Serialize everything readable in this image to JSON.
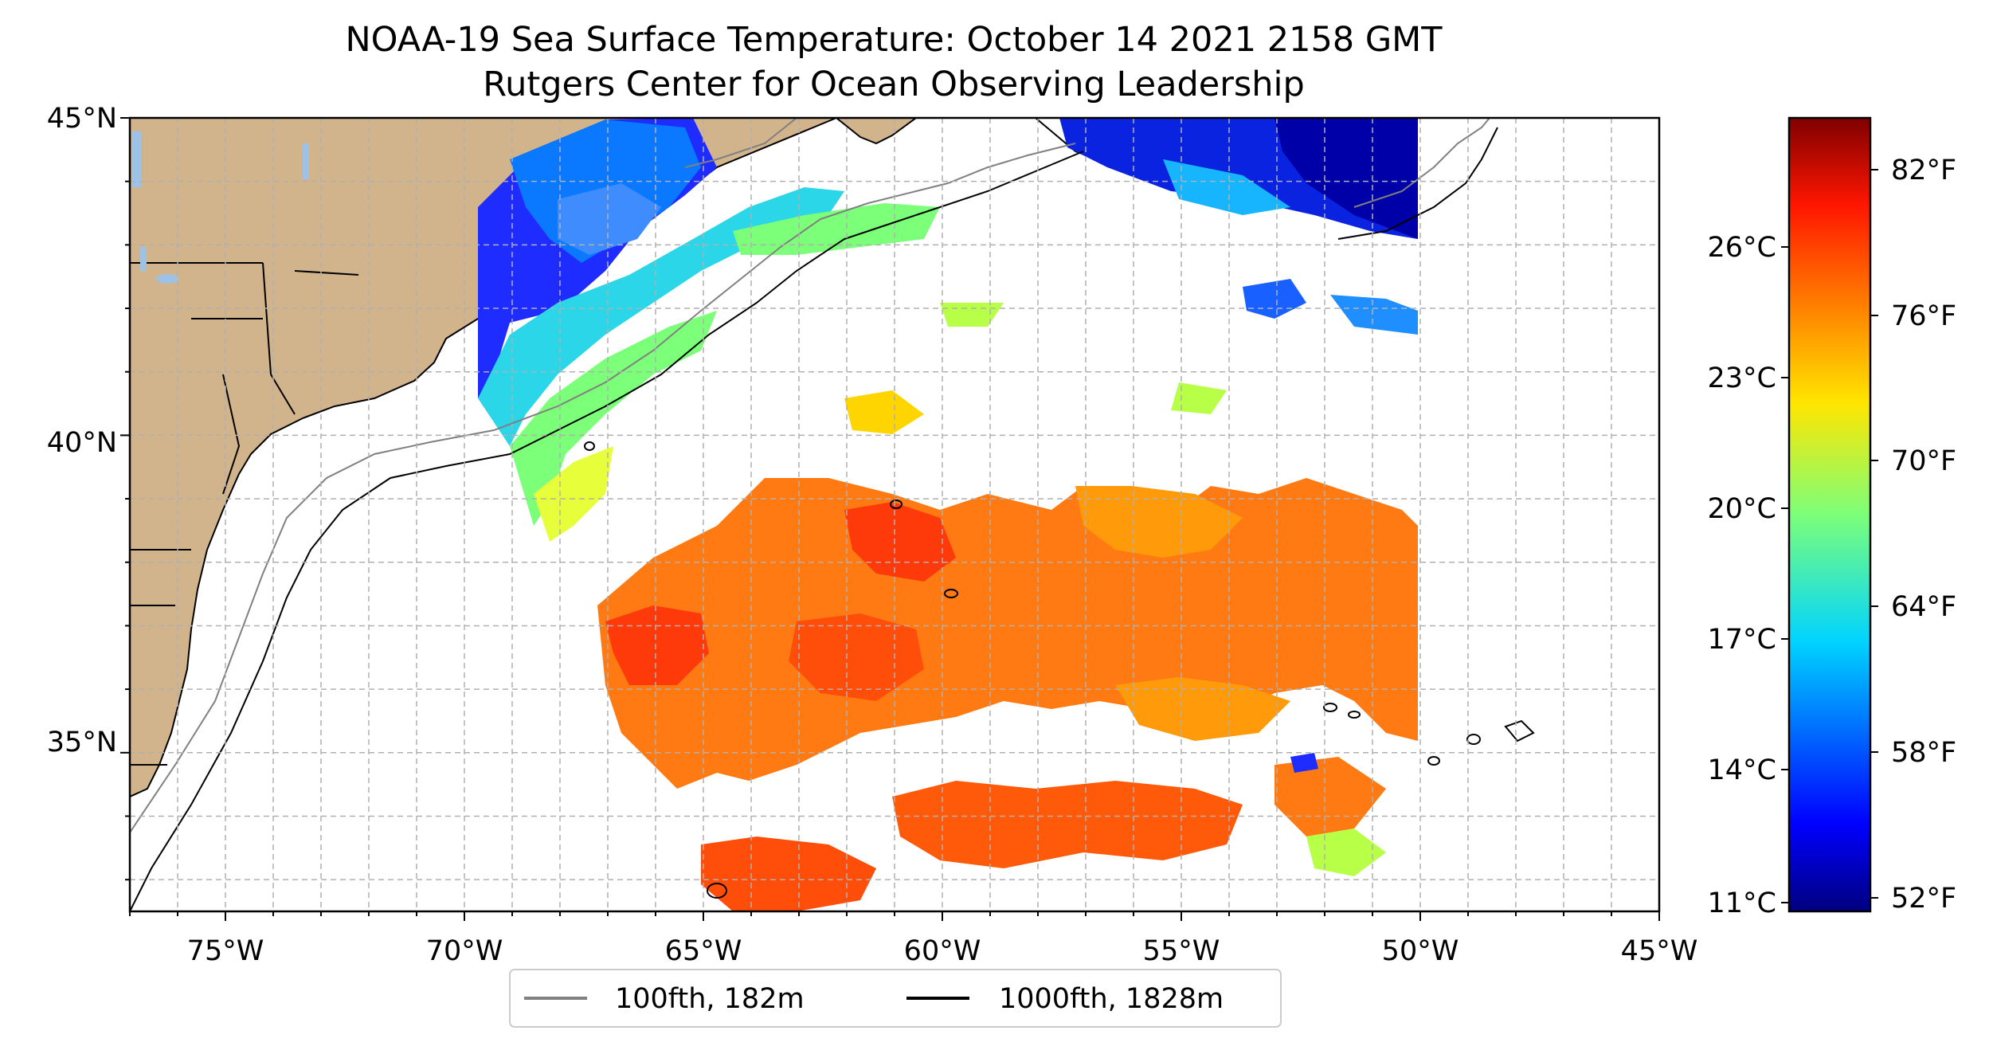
{
  "title": {
    "line1": "NOAA-19 Sea Surface Temperature: October 14 2021 2158 GMT",
    "line2": "Rutgers Center for Ocean Observing Leadership"
  },
  "map": {
    "extent": {
      "lon_min": -77,
      "lon_max": -45,
      "lat_min": 32.5,
      "lat_max": 45
    },
    "land_color": "#d2b48c",
    "lake_color": "#9ec2e6",
    "grid": "dashed gray, 1 degree",
    "x_ticks": [
      "75°W",
      "70°W",
      "65°W",
      "60°W",
      "55°W",
      "50°W",
      "45°W"
    ],
    "y_ticks": [
      "45°N",
      "40°N",
      "35°N"
    ]
  },
  "legend": {
    "items": [
      {
        "label": "100fth, 182m",
        "color": "#808080"
      },
      {
        "label": "1000fth, 1828m",
        "color": "#000000"
      }
    ]
  },
  "colorbar": {
    "colormap": "jet",
    "celsius_ticks": [
      "26°C",
      "23°C",
      "20°C",
      "17°C",
      "14°C",
      "11°C"
    ],
    "fahrenheit_ticks": [
      "82°F",
      "76°F",
      "70°F",
      "64°F",
      "58°F",
      "52°F"
    ]
  }
}
